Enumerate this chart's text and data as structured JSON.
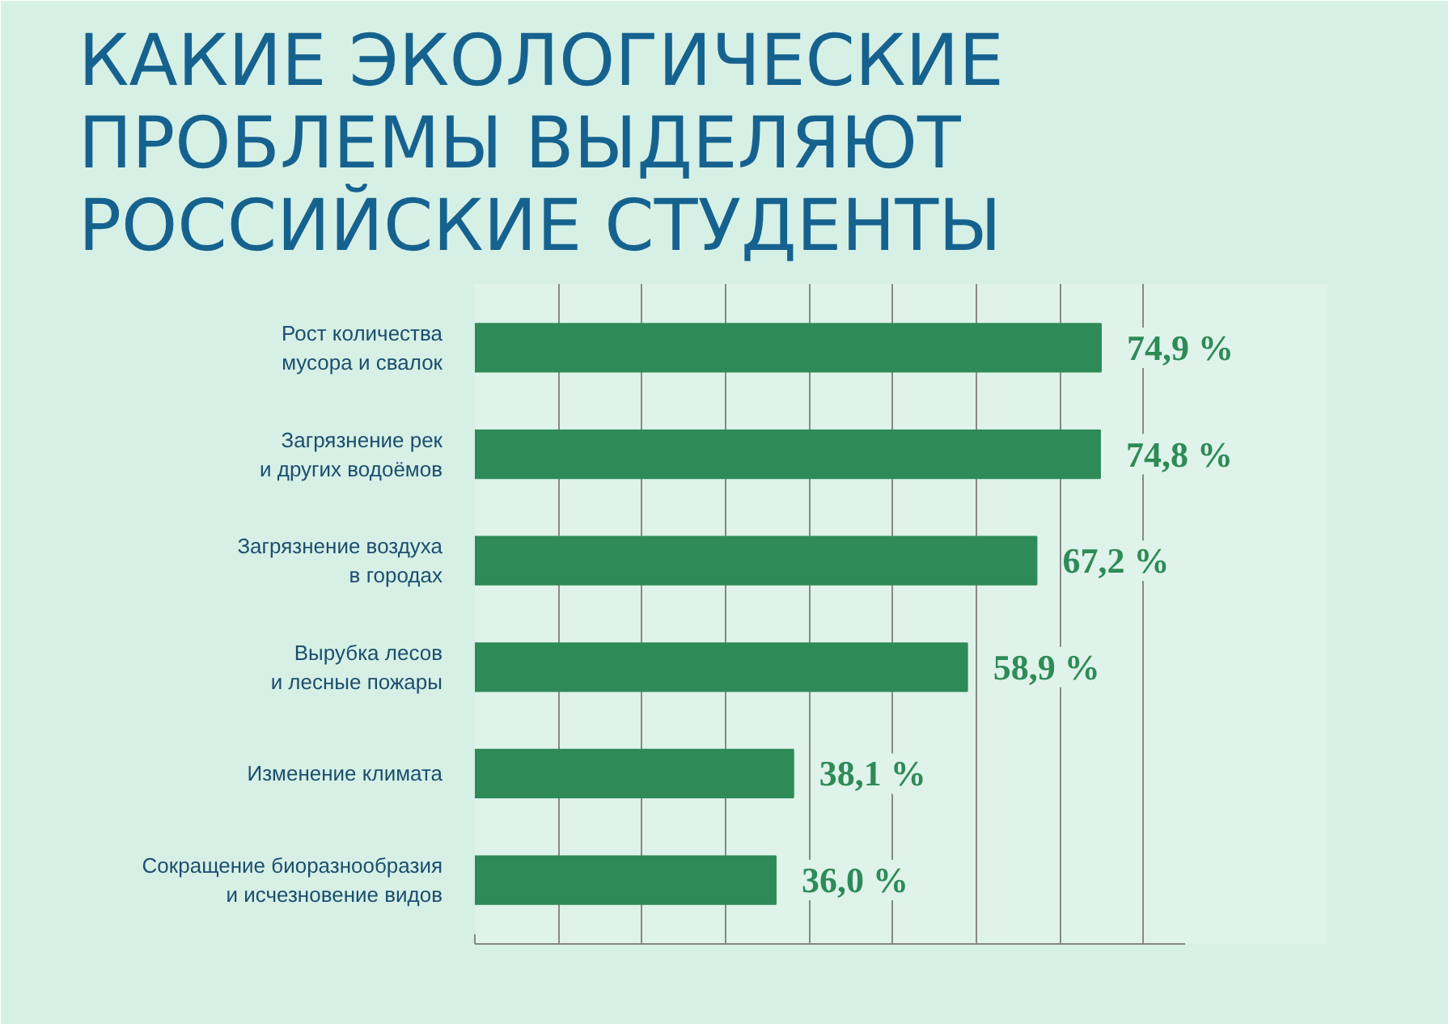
{
  "chart_data": {
    "type": "bar",
    "orientation": "horizontal",
    "title": "КАКИЕ ЭКОЛОГИЧЕСКИЕ\nПРОБЛЕМЫ ВЫДЕЛЯЮТ\nРОССИЙСКИЕ СТУДЕНТЫ",
    "categories": [
      "Рост количества\nмусора и свалок",
      "Загрязнение рек\nи других водоёмов",
      "Загрязнение воздуха\nв городах",
      "Вырубка лесов\nи лесные пожары",
      "Изменение климата",
      "Сокращение биоразнообразия\nи исчезновение видов"
    ],
    "values": [
      74.9,
      74.8,
      67.2,
      58.9,
      38.1,
      36.0
    ],
    "value_labels": [
      "74,9 %",
      "74,8 %",
      "67,2 %",
      "58,9 %",
      "38,1 %",
      "36,0 %"
    ],
    "color": "#2e8b57",
    "xlim": [
      0,
      85
    ],
    "xticks": [
      {
        "value": 0,
        "label": null
      },
      {
        "value": 10,
        "label": null
      },
      {
        "value": 20,
        "label": null
      },
      {
        "value": 30,
        "label": null
      },
      {
        "value": 40,
        "label": null
      },
      {
        "value": 50,
        "label": null
      },
      {
        "value": 60,
        "label": null
      },
      {
        "value": 70,
        "label": null
      },
      {
        "value": 80,
        "label": null
      }
    ],
    "grid": "x",
    "tick_labels": "y"
  }
}
